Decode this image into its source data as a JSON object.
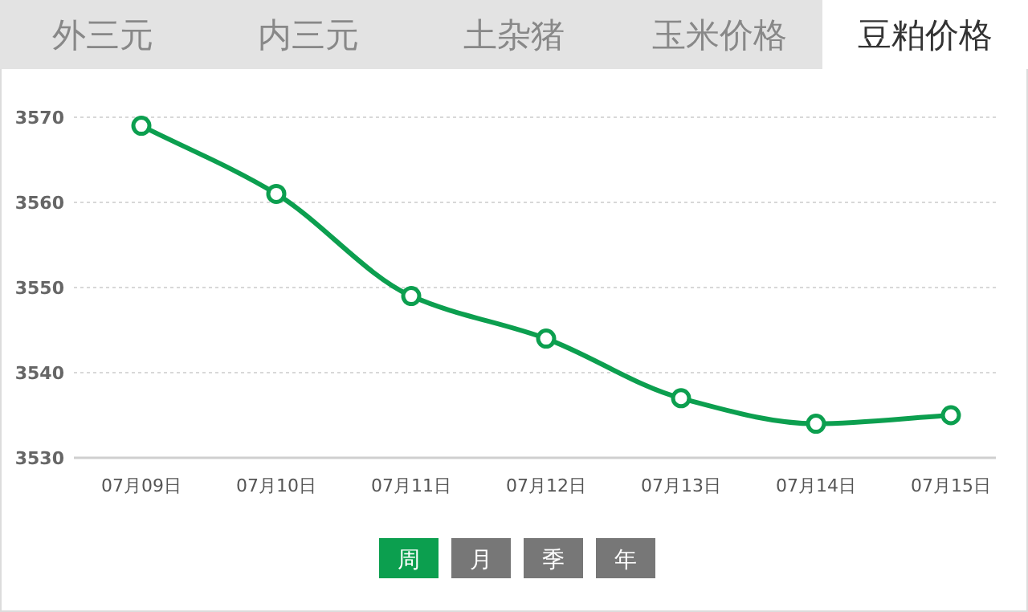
{
  "chart_data": {
    "type": "line",
    "title": "豆粕价格",
    "annotations": [
      "外三元",
      "内三元",
      "土杂猪",
      "玉米价格",
      "周",
      "月",
      "季",
      "年"
    ],
    "categories": [
      "07月09日",
      "07月10日",
      "07月11日",
      "07月12日",
      "07月13日",
      "07月14日",
      "07月15日"
    ],
    "series": [
      {
        "color": "#0c9f4f",
        "values": [
          3569,
          3561,
          3549,
          3544,
          3537,
          3534,
          3535
        ]
      }
    ],
    "ylim": [
      3530,
      3570
    ],
    "yticks": [
      3530,
      3540,
      3550,
      3560,
      3570
    ],
    "grid": "y",
    "marker": "circle",
    "line_style": "solid"
  }
}
